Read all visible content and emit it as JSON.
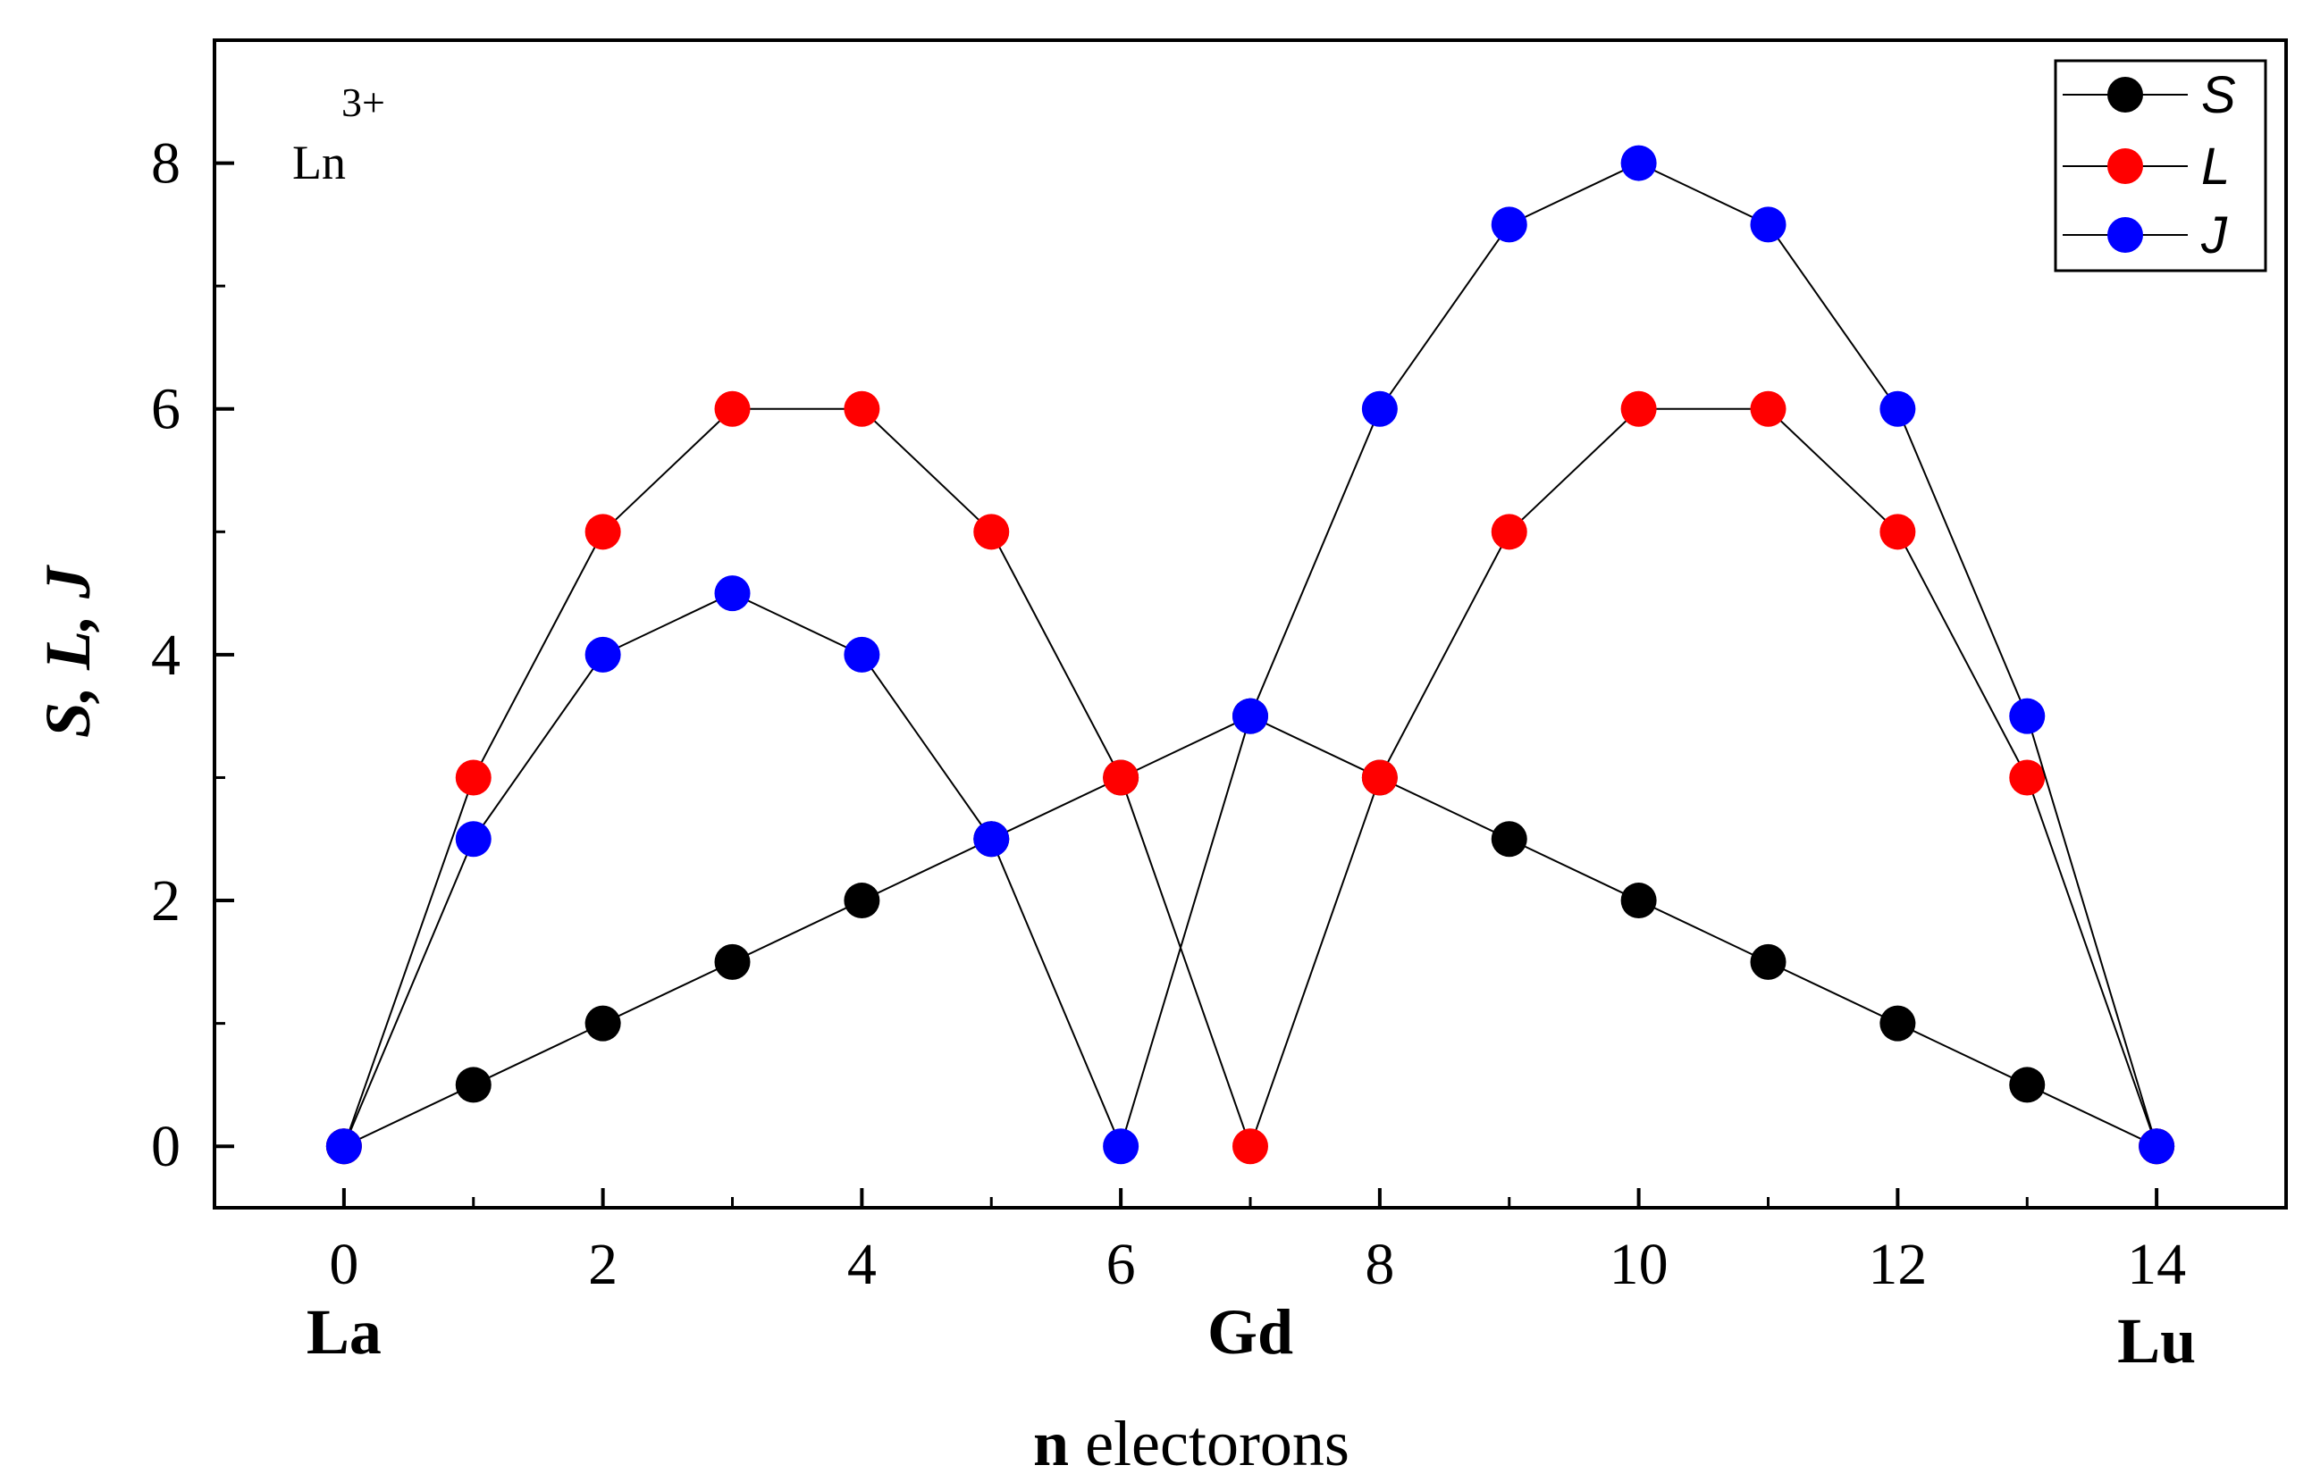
{
  "chart_data": {
    "type": "scatter",
    "title": "",
    "xlabel_bold": "n",
    "xlabel_rest": " electorons",
    "ylabel": "S, L, J",
    "xlim": [
      -1,
      15
    ],
    "ylim": [
      -0.5,
      9
    ],
    "xticks": [
      0,
      2,
      4,
      6,
      8,
      10,
      12,
      14
    ],
    "yticks": [
      0,
      2,
      4,
      6,
      8
    ],
    "xminor": [
      1,
      3,
      5,
      7,
      9,
      11,
      13
    ],
    "yminor": [
      1,
      3,
      5,
      7
    ],
    "grid": false,
    "legend_position": "top-right",
    "annotation": {
      "base": "Ln",
      "superscript": "3+"
    },
    "element_labels": [
      {
        "text": "La",
        "x": 0
      },
      {
        "text": "Gd",
        "x": 7
      },
      {
        "text": "Lu",
        "x": 14
      }
    ],
    "x": [
      0,
      1,
      2,
      3,
      4,
      5,
      6,
      7,
      8,
      9,
      10,
      11,
      12,
      13,
      14
    ],
    "series": [
      {
        "name": "S",
        "color": "#000000",
        "values": [
          0,
          0.5,
          1,
          1.5,
          2,
          2.5,
          3,
          3.5,
          3,
          2.5,
          2,
          1.5,
          1,
          0.5,
          0
        ]
      },
      {
        "name": "L",
        "color": "#ff0000",
        "values": [
          0,
          3,
          5,
          6,
          6,
          5,
          3,
          0,
          3,
          5,
          6,
          6,
          5,
          3,
          0
        ]
      },
      {
        "name": "J",
        "color": "#0000ff",
        "values": [
          0,
          2.5,
          4,
          4.5,
          4,
          2.5,
          0,
          3.5,
          6,
          7.5,
          8,
          7.5,
          6,
          3.5,
          0
        ]
      }
    ]
  }
}
